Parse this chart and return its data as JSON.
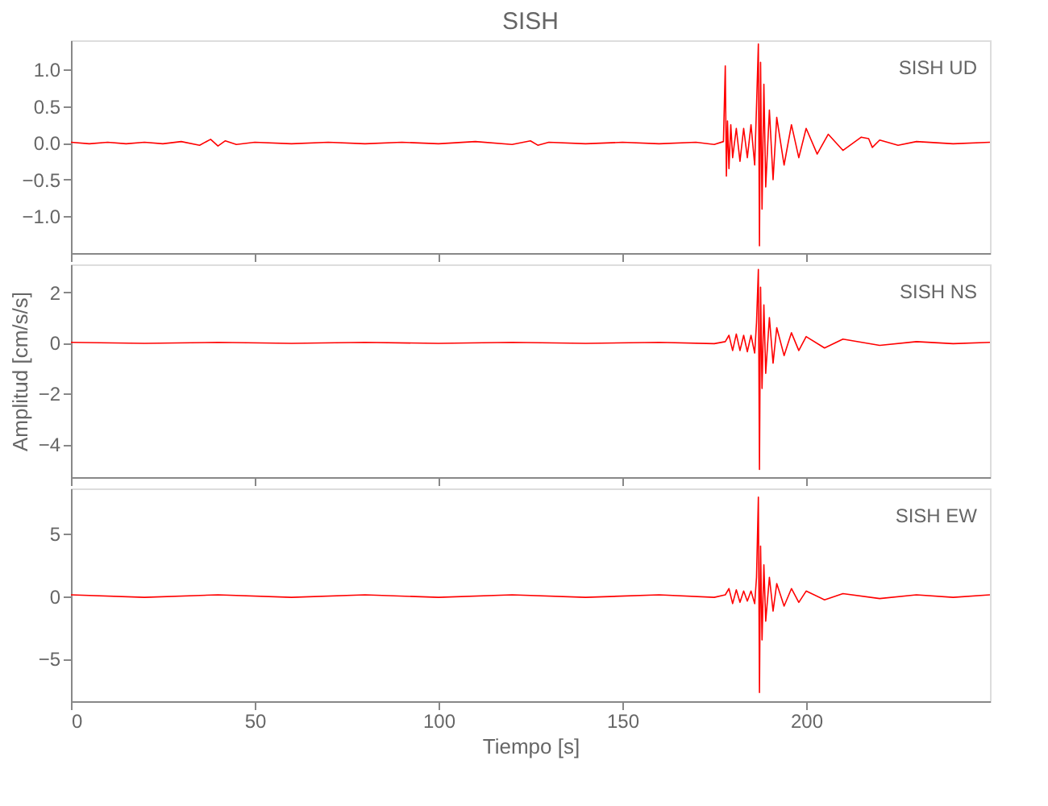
{
  "chart_data": [
    {
      "type": "line",
      "title": "SISH",
      "xlim": [
        0,
        250
      ],
      "xticks": [
        0,
        50,
        100,
        150,
        200
      ],
      "ylim": [
        -1.5,
        1.4
      ],
      "yticks": [
        {
          "value": 1.0,
          "label": "1.0"
        },
        {
          "value": 0.5,
          "label": "0.5"
        },
        {
          "value": 0.0,
          "label": "0.0"
        },
        {
          "value": -0.5,
          "label": "−0.5"
        },
        {
          "value": -1.0,
          "label": "−1.0"
        }
      ],
      "tick_labels": "y",
      "grid": false,
      "annotations": [
        "SISH UD"
      ],
      "line_style": "solid",
      "series": [
        {
          "color": "#ff0000",
          "x": [
            0,
            5,
            10,
            15,
            20,
            25,
            30,
            35,
            38,
            40,
            42,
            45,
            50,
            60,
            70,
            80,
            90,
            100,
            110,
            120,
            125,
            127,
            130,
            140,
            150,
            160,
            170,
            175,
            177.5,
            178,
            178.3,
            178.6,
            179,
            179.5,
            180,
            181,
            182,
            183,
            184,
            185,
            186,
            186.5,
            187,
            187.3,
            187.6,
            188,
            188.5,
            189,
            190,
            191,
            192,
            194,
            196,
            198,
            200,
            203,
            206,
            210,
            215,
            217,
            218,
            220,
            225,
            230,
            240,
            250
          ],
          "values": [
            0.01,
            -0.01,
            0.01,
            -0.01,
            0.01,
            -0.01,
            0.02,
            -0.03,
            0.05,
            -0.04,
            0.03,
            -0.02,
            0.01,
            -0.01,
            0.01,
            -0.01,
            0.01,
            -0.01,
            0.02,
            -0.02,
            0.03,
            -0.03,
            0.01,
            -0.01,
            0.01,
            -0.01,
            0.01,
            -0.02,
            0.02,
            1.05,
            -0.45,
            0.3,
            -0.35,
            0.25,
            -0.2,
            0.2,
            -0.25,
            0.2,
            -0.2,
            0.25,
            -0.3,
            0.5,
            1.35,
            -1.4,
            1.1,
            -0.9,
            0.8,
            -0.6,
            0.45,
            -0.5,
            0.35,
            -0.3,
            0.25,
            -0.2,
            0.2,
            -0.15,
            0.12,
            -0.1,
            0.08,
            0.06,
            -0.06,
            0.04,
            -0.03,
            0.02,
            -0.01,
            0.01
          ]
        }
      ]
    },
    {
      "type": "line",
      "ylabel": "Amplitud [cm/s/s]",
      "xlim": [
        0,
        250
      ],
      "xticks": [
        0,
        50,
        100,
        150,
        200
      ],
      "ylim": [
        -5.3,
        3.1
      ],
      "yticks": [
        2,
        0,
        {
          "value": -2,
          "label": "−2"
        },
        {
          "value": -4,
          "label": "−4"
        }
      ],
      "tick_labels": "y",
      "grid": false,
      "annotations": [
        "SISH NS"
      ],
      "line_style": "solid",
      "series": [
        {
          "color": "#ff0000",
          "x": [
            0,
            20,
            40,
            60,
            80,
            100,
            120,
            140,
            160,
            175,
            178,
            179,
            180,
            181,
            182,
            183,
            184,
            185,
            186,
            186.5,
            187,
            187.3,
            187.6,
            188,
            188.5,
            189,
            190,
            191,
            192,
            194,
            196,
            198,
            200,
            205,
            210,
            220,
            230,
            240,
            250
          ],
          "values": [
            0.02,
            -0.02,
            0.02,
            -0.02,
            0.02,
            -0.02,
            0.02,
            -0.02,
            0.02,
            -0.03,
            0.05,
            0.3,
            -0.3,
            0.35,
            -0.3,
            0.3,
            -0.35,
            0.3,
            -0.4,
            0.8,
            2.9,
            -5.0,
            2.2,
            -1.8,
            1.5,
            -1.2,
            1.0,
            -0.8,
            0.6,
            -0.5,
            0.4,
            -0.3,
            0.25,
            -0.2,
            0.15,
            -0.1,
            0.05,
            -0.03,
            0.02
          ]
        }
      ]
    },
    {
      "type": "line",
      "xlabel": "Tiempo [s]",
      "xlim": [
        0,
        250
      ],
      "xticks": [
        0,
        50,
        100,
        150,
        200
      ],
      "ylim": [
        -8.4,
        8.6
      ],
      "yticks": [
        5,
        0,
        {
          "value": -5,
          "label": "−5"
        }
      ],
      "grid": false,
      "annotations": [
        "SISH EW"
      ],
      "line_style": "solid",
      "series": [
        {
          "color": "#ff0000",
          "x": [
            0,
            20,
            40,
            60,
            80,
            100,
            120,
            140,
            160,
            175,
            178,
            179,
            180,
            181,
            182,
            183,
            184,
            185,
            186,
            186.5,
            187,
            187.3,
            187.6,
            188,
            188.5,
            189,
            190,
            191,
            192,
            194,
            196,
            198,
            200,
            205,
            210,
            220,
            230,
            240,
            250
          ],
          "values": [
            0.1,
            -0.1,
            0.1,
            -0.1,
            0.1,
            -0.1,
            0.1,
            -0.1,
            0.1,
            -0.1,
            0.1,
            0.6,
            -0.6,
            0.5,
            -0.5,
            0.4,
            -0.4,
            0.4,
            -0.6,
            1.5,
            7.9,
            -7.7,
            4.0,
            -3.5,
            2.5,
            -2.0,
            1.5,
            -1.2,
            1.0,
            -0.8,
            0.6,
            -0.5,
            0.4,
            -0.3,
            0.2,
            -0.2,
            0.1,
            -0.1,
            0.1
          ]
        }
      ]
    }
  ]
}
